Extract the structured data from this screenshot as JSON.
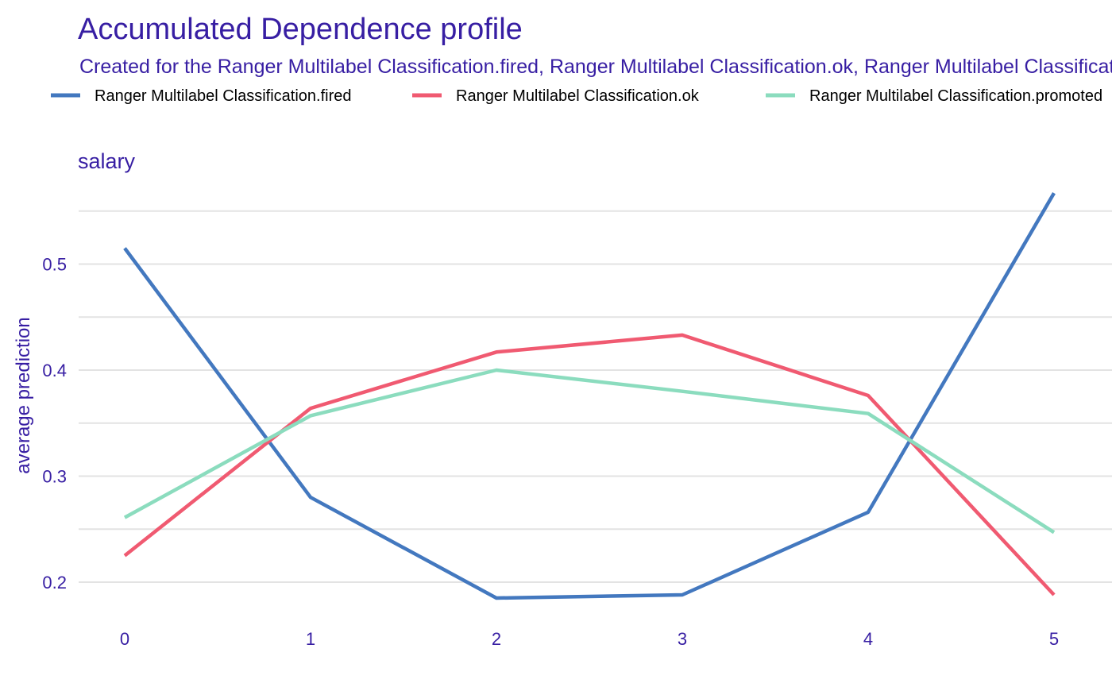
{
  "title": "Accumulated Dependence profile",
  "subtitle": "Created for the Ranger Multilabel Classification.fired, Ranger Multilabel Classification.ok, Ranger Multilabel Classification.promoted model",
  "legend": [
    {
      "label": "Ranger Multilabel Classification.fired",
      "color": "#4378bf"
    },
    {
      "label": "Ranger Multilabel Classification.ok",
      "color": "#f05a71"
    },
    {
      "label": "Ranger Multilabel Classification.promoted",
      "color": "#8bdcbe"
    }
  ],
  "text_color": "#371ea3",
  "grid_color": "#e3e3e3",
  "chart_data": {
    "type": "line",
    "panel_title": "salary",
    "xlabel": "",
    "ylabel": "average prediction",
    "x": [
      0,
      1,
      2,
      3,
      4,
      5
    ],
    "x_tick_labels": [
      "0",
      "1",
      "2",
      "3",
      "4",
      "5"
    ],
    "y_ticks": [
      0.2,
      0.3,
      0.4,
      0.5
    ],
    "y_tick_labels": [
      "0.2",
      "0.3",
      "0.4",
      "0.5"
    ],
    "y_minor_grid": [
      0.25,
      0.35,
      0.45,
      0.55
    ],
    "xlim": [
      -0.25,
      5.25
    ],
    "ylim": [
      0.15,
      0.58
    ],
    "grid": true,
    "legend_position": "top",
    "series": [
      {
        "name": "Ranger Multilabel Classification.fired",
        "color": "#4378bf",
        "values": [
          0.515,
          0.28,
          0.185,
          0.188,
          0.266,
          0.567
        ]
      },
      {
        "name": "Ranger Multilabel Classification.ok",
        "color": "#f05a71",
        "values": [
          0.225,
          0.364,
          0.417,
          0.433,
          0.376,
          0.188
        ]
      },
      {
        "name": "Ranger Multilabel Classification.promoted",
        "color": "#8bdcbe",
        "values": [
          0.261,
          0.357,
          0.4,
          0.38,
          0.359,
          0.247
        ]
      }
    ]
  }
}
